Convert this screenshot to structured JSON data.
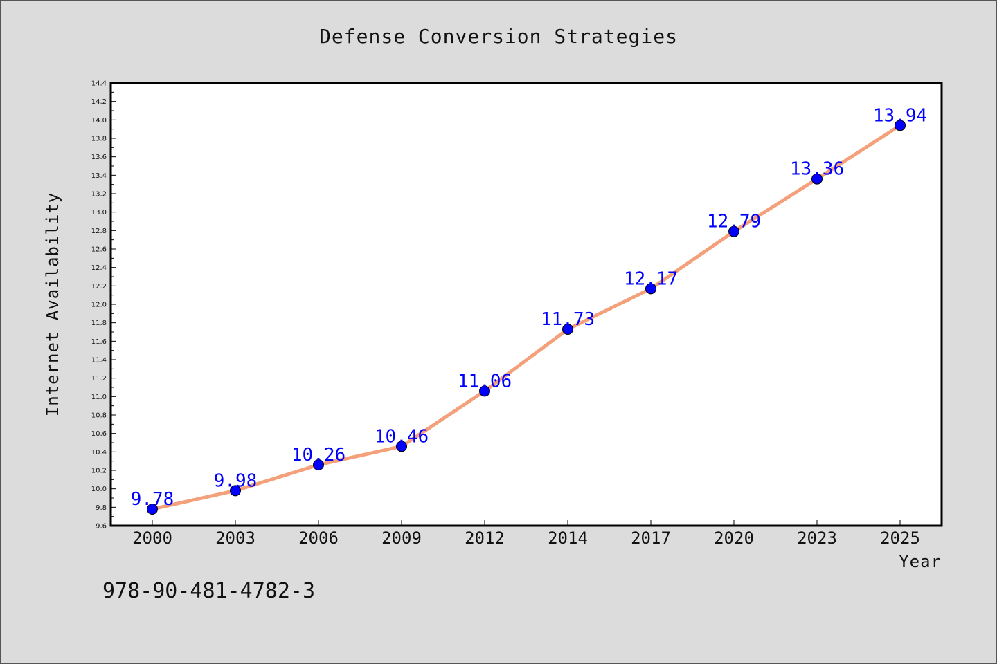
{
  "chart_data": {
    "type": "line",
    "title": "Defense Conversion Strategies",
    "xlabel": "Year",
    "ylabel": "Internet Availability",
    "categories": [
      "2000",
      "2003",
      "2006",
      "2009",
      "2012",
      "2014",
      "2017",
      "2020",
      "2023",
      "2025"
    ],
    "series": [
      {
        "values": [
          9.78,
          9.98,
          10.26,
          10.46,
          11.06,
          11.73,
          12.17,
          12.79,
          13.36,
          13.94
        ]
      }
    ],
    "data_labels": [
      "9.78",
      "9.98",
      "10.26",
      "10.46",
      "11.06",
      "11.73",
      "12.17",
      "12.79",
      "13.36",
      "13.94"
    ],
    "ylim": [
      9.6,
      14.4
    ],
    "yticks": [
      "9.6",
      "9.8",
      "10.0",
      "10.2",
      "10.4",
      "10.6",
      "10.8",
      "11.0",
      "11.2",
      "11.4",
      "11.6",
      "11.8",
      "12.0",
      "12.2",
      "12.4",
      "12.6",
      "12.8",
      "13.0",
      "13.2",
      "13.4",
      "13.6",
      "13.8",
      "14.0",
      "14.2",
      "14.4"
    ],
    "grid": false,
    "legend": "none",
    "line_color": "#f4a07a",
    "marker_color": "#0000ff",
    "label_color": "#0000ff",
    "plot_background": "#ffffff",
    "page_background": "#dcdcdc"
  },
  "footer": {
    "code": "978-90-481-4782-3"
  }
}
